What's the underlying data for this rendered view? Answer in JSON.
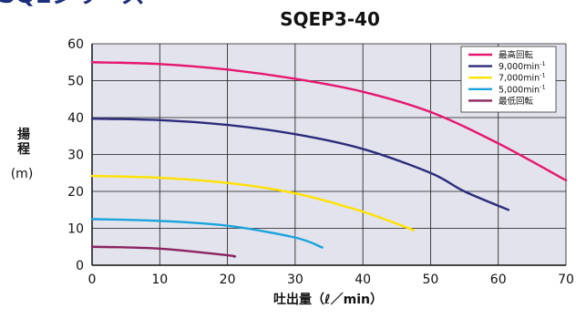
{
  "header": {
    "cropped_title": "SQEシリーズ"
  },
  "chart_data": {
    "type": "line",
    "title": "SQEP3-40",
    "xlabel": "吐出量（ℓ／min）",
    "ylabel_chars": [
      "揚",
      "程"
    ],
    "ylabel_unit": "(m)",
    "xlim": [
      0,
      70
    ],
    "ylim": [
      0,
      60
    ],
    "x_ticks": [
      0,
      10,
      20,
      30,
      40,
      50,
      60,
      70
    ],
    "y_ticks": [
      0,
      10,
      20,
      30,
      40,
      50,
      60
    ],
    "grid": true,
    "legend_position": "top-right",
    "colors": {
      "plot_bg": "#e2e3ec",
      "grid": "#1a1a1a"
    },
    "series": [
      {
        "name": "最高回転",
        "color": "#e6176e",
        "points": [
          [
            0,
            55
          ],
          [
            10,
            54.5
          ],
          [
            20,
            53
          ],
          [
            30,
            50.5
          ],
          [
            40,
            47
          ],
          [
            50,
            41.5
          ],
          [
            60,
            33
          ],
          [
            70,
            23
          ]
        ]
      },
      {
        "name": "9,000min",
        "sup": "-1",
        "color": "#2c2c7c",
        "points": [
          [
            0,
            39.7
          ],
          [
            10,
            39.3
          ],
          [
            20,
            38
          ],
          [
            30,
            35.5
          ],
          [
            40,
            31.5
          ],
          [
            50,
            25
          ],
          [
            55,
            20
          ],
          [
            61.5,
            15
          ]
        ]
      },
      {
        "name": "7,000min",
        "sup": "-1",
        "color": "#ffe200",
        "points": [
          [
            0,
            24.2
          ],
          [
            10,
            23.7
          ],
          [
            20,
            22.3
          ],
          [
            30,
            19.5
          ],
          [
            40,
            14.5
          ],
          [
            47.5,
            9.5
          ]
        ]
      },
      {
        "name": "5,000min",
        "sup": "-1",
        "color": "#1aa3dd",
        "points": [
          [
            0,
            12.5
          ],
          [
            10,
            12
          ],
          [
            20,
            10.7
          ],
          [
            30,
            7.5
          ],
          [
            34,
            4.8
          ]
        ]
      },
      {
        "name": "最低回転",
        "color": "#8c2361",
        "points": [
          [
            0,
            5
          ],
          [
            10,
            4.5
          ],
          [
            20,
            2.7
          ],
          [
            21,
            2.3
          ]
        ]
      }
    ]
  }
}
